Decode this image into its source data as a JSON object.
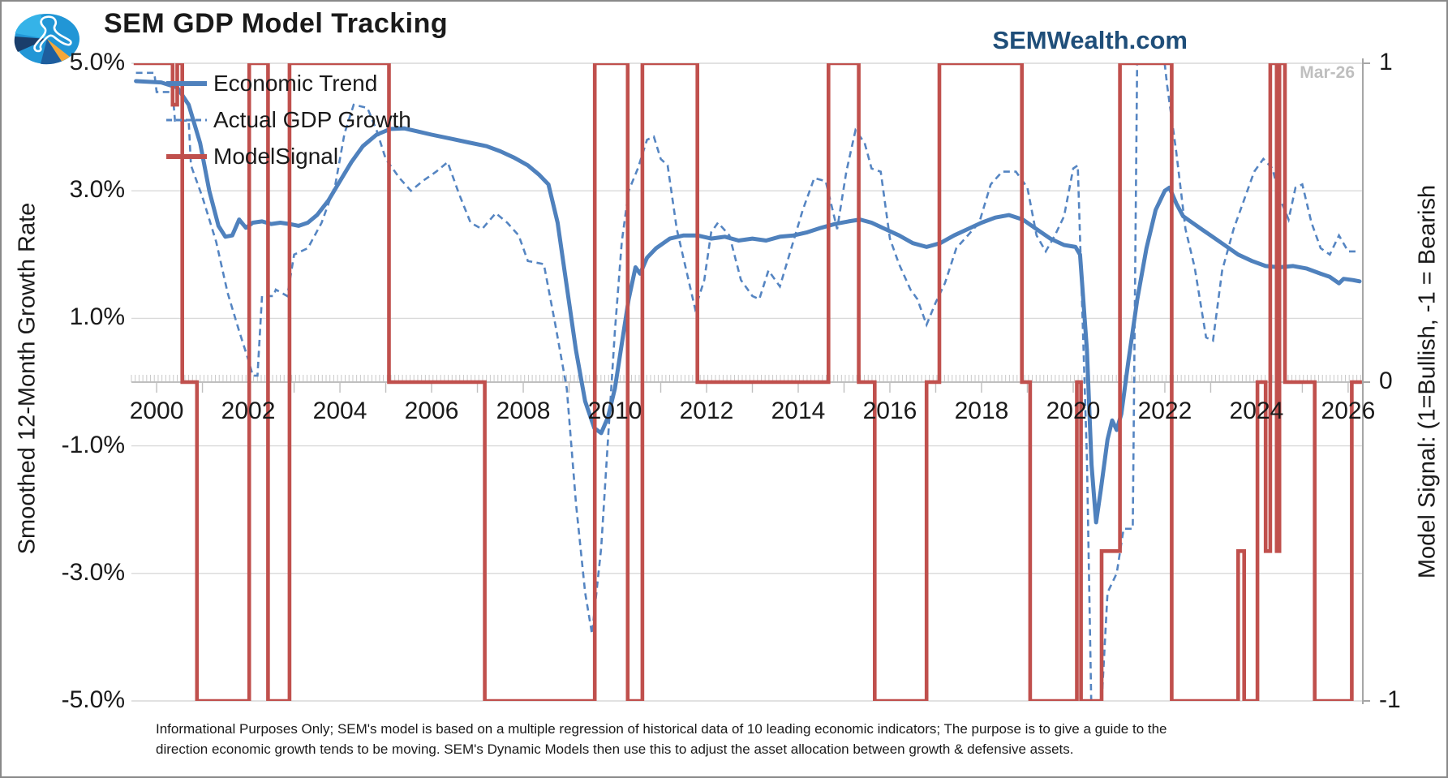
{
  "header": {
    "title": "SEM GDP Model Tracking",
    "brand": "SEMWealth.com",
    "logo": "sem-pie-compass-logo"
  },
  "legend": {
    "items": [
      {
        "label": "Economic Trend",
        "style": "solid",
        "color": "#4F81BD"
      },
      {
        "label": "Actual GDP Growth",
        "style": "dashed",
        "color": "#5585C2"
      },
      {
        "label": "ModelSignal",
        "style": "solid",
        "color": "#C0504D"
      }
    ]
  },
  "footer": {
    "line1": "Informational Purposes Only; SEM's model is based on a multiple regression of historical data of 10 leading economic indicators; The purpose is to give a guide to the",
    "line2": "direction economic growth tends to be moving. SEM's Dynamic Models then use this to adjust the asset allocation between growth & defensive assets."
  },
  "chart_data": {
    "type": "line",
    "title": "SEM GDP Model Tracking",
    "annotation": "Mar-26",
    "left_axis": {
      "label": "Smoothed 12-Month Growth Rate",
      "ticks": [
        {
          "v": 5,
          "text": "5.0%"
        },
        {
          "v": 3,
          "text": "3.0%"
        },
        {
          "v": 1,
          "text": "1.0%"
        },
        {
          "v": -1,
          "text": "-1.0%"
        },
        {
          "v": -3,
          "text": "-3.0%"
        },
        {
          "v": -5,
          "text": "-5.0%"
        }
      ],
      "range": [
        -5,
        5
      ],
      "grid": true
    },
    "right_axis": {
      "label": "Model Signal: (1=Bullish, -1 = Bearish",
      "ticks": [
        {
          "v": 1,
          "text": "1"
        },
        {
          "v": 0,
          "text": "0"
        },
        {
          "v": -1,
          "text": "-1"
        }
      ],
      "range": [
        -1,
        1
      ]
    },
    "x_axis": {
      "year_labels": [
        2000,
        2002,
        2004,
        2006,
        2008,
        2010,
        2012,
        2014,
        2016,
        2018,
        2020,
        2022,
        2024,
        2026
      ],
      "range": [
        1999.45,
        2026.32
      ],
      "minor_tick_interval_years": 0.0833,
      "major_tick_interval_years": 1
    },
    "colors": {
      "trend": "#4F81BD",
      "gdp": "#5585C2",
      "signal": "#C0504D",
      "grid": "#D9D9D9",
      "axis": "#BFBFBF"
    },
    "series": [
      {
        "name": "Economic Trend",
        "type": "line",
        "axis": "left",
        "points": [
          [
            1999.55,
            4.72
          ],
          [
            2000.1,
            4.7
          ],
          [
            2000.45,
            4.62
          ],
          [
            2000.7,
            4.35
          ],
          [
            2000.95,
            3.75
          ],
          [
            2001.15,
            3.0
          ],
          [
            2001.35,
            2.45
          ],
          [
            2001.5,
            2.28
          ],
          [
            2001.65,
            2.3
          ],
          [
            2001.8,
            2.55
          ],
          [
            2001.95,
            2.42
          ],
          [
            2002.1,
            2.5
          ],
          [
            2002.3,
            2.52
          ],
          [
            2002.5,
            2.48
          ],
          [
            2002.7,
            2.5
          ],
          [
            2002.9,
            2.48
          ],
          [
            2003.1,
            2.45
          ],
          [
            2003.3,
            2.5
          ],
          [
            2003.5,
            2.62
          ],
          [
            2003.75,
            2.85
          ],
          [
            2004.0,
            3.15
          ],
          [
            2004.25,
            3.45
          ],
          [
            2004.5,
            3.7
          ],
          [
            2004.8,
            3.88
          ],
          [
            2005.1,
            3.97
          ],
          [
            2005.4,
            3.98
          ],
          [
            2005.7,
            3.93
          ],
          [
            2006.0,
            3.88
          ],
          [
            2006.4,
            3.82
          ],
          [
            2006.8,
            3.76
          ],
          [
            2007.2,
            3.7
          ],
          [
            2007.5,
            3.62
          ],
          [
            2007.8,
            3.52
          ],
          [
            2008.1,
            3.4
          ],
          [
            2008.35,
            3.25
          ],
          [
            2008.55,
            3.1
          ],
          [
            2008.75,
            2.5
          ],
          [
            2008.95,
            1.5
          ],
          [
            2009.15,
            0.5
          ],
          [
            2009.35,
            -0.3
          ],
          [
            2009.55,
            -0.72
          ],
          [
            2009.7,
            -0.8
          ],
          [
            2009.85,
            -0.55
          ],
          [
            2010.0,
            -0.1
          ],
          [
            2010.15,
            0.6
          ],
          [
            2010.3,
            1.3
          ],
          [
            2010.45,
            1.8
          ],
          [
            2010.55,
            1.7
          ],
          [
            2010.7,
            1.95
          ],
          [
            2010.9,
            2.1
          ],
          [
            2011.2,
            2.25
          ],
          [
            2011.5,
            2.3
          ],
          [
            2011.8,
            2.3
          ],
          [
            2012.1,
            2.25
          ],
          [
            2012.4,
            2.28
          ],
          [
            2012.7,
            2.22
          ],
          [
            2013.0,
            2.25
          ],
          [
            2013.3,
            2.22
          ],
          [
            2013.6,
            2.28
          ],
          [
            2013.9,
            2.3
          ],
          [
            2014.2,
            2.35
          ],
          [
            2014.5,
            2.42
          ],
          [
            2014.8,
            2.48
          ],
          [
            2015.1,
            2.52
          ],
          [
            2015.35,
            2.55
          ],
          [
            2015.6,
            2.5
          ],
          [
            2015.9,
            2.4
          ],
          [
            2016.2,
            2.3
          ],
          [
            2016.5,
            2.18
          ],
          [
            2016.8,
            2.12
          ],
          [
            2017.1,
            2.18
          ],
          [
            2017.4,
            2.3
          ],
          [
            2017.7,
            2.4
          ],
          [
            2018.0,
            2.5
          ],
          [
            2018.3,
            2.58
          ],
          [
            2018.6,
            2.62
          ],
          [
            2018.9,
            2.55
          ],
          [
            2019.2,
            2.4
          ],
          [
            2019.5,
            2.25
          ],
          [
            2019.8,
            2.15
          ],
          [
            2020.05,
            2.12
          ],
          [
            2020.15,
            2.0
          ],
          [
            2020.3,
            0.5
          ],
          [
            2020.4,
            -1.3
          ],
          [
            2020.5,
            -2.2
          ],
          [
            2020.6,
            -1.7
          ],
          [
            2020.75,
            -0.9
          ],
          [
            2020.85,
            -0.6
          ],
          [
            2020.95,
            -0.75
          ],
          [
            2021.05,
            -0.5
          ],
          [
            2021.2,
            0.3
          ],
          [
            2021.4,
            1.3
          ],
          [
            2021.6,
            2.1
          ],
          [
            2021.8,
            2.7
          ],
          [
            2022.0,
            3.0
          ],
          [
            2022.1,
            3.05
          ],
          [
            2022.25,
            2.8
          ],
          [
            2022.4,
            2.6
          ],
          [
            2022.6,
            2.5
          ],
          [
            2022.8,
            2.4
          ],
          [
            2023.0,
            2.3
          ],
          [
            2023.3,
            2.15
          ],
          [
            2023.6,
            2.0
          ],
          [
            2023.9,
            1.9
          ],
          [
            2024.2,
            1.82
          ],
          [
            2024.5,
            1.8
          ],
          [
            2024.8,
            1.82
          ],
          [
            2025.1,
            1.78
          ],
          [
            2025.4,
            1.7
          ],
          [
            2025.6,
            1.65
          ],
          [
            2025.8,
            1.55
          ],
          [
            2025.9,
            1.62
          ],
          [
            2026.1,
            1.6
          ],
          [
            2026.25,
            1.58
          ]
        ]
      },
      {
        "name": "Actual GDP Growth",
        "type": "line-dashed",
        "axis": "left",
        "points": [
          [
            1999.55,
            4.85
          ],
          [
            1999.95,
            4.85
          ],
          [
            2000.0,
            4.55
          ],
          [
            2000.35,
            4.55
          ],
          [
            2000.4,
            4.1
          ],
          [
            2000.7,
            4.1
          ],
          [
            2000.75,
            3.4
          ],
          [
            2001.0,
            2.9
          ],
          [
            2001.3,
            2.2
          ],
          [
            2001.55,
            1.4
          ],
          [
            2001.8,
            0.8
          ],
          [
            2002.0,
            0.35
          ],
          [
            2002.1,
            0.1
          ],
          [
            2002.2,
            0.1
          ],
          [
            2002.3,
            1.35
          ],
          [
            2002.55,
            1.35
          ],
          [
            2002.6,
            1.45
          ],
          [
            2002.85,
            1.35
          ],
          [
            2003.0,
            2.0
          ],
          [
            2003.3,
            2.1
          ],
          [
            2003.6,
            2.5
          ],
          [
            2003.9,
            3.1
          ],
          [
            2004.1,
            3.9
          ],
          [
            2004.3,
            4.35
          ],
          [
            2004.6,
            4.3
          ],
          [
            2004.8,
            3.95
          ],
          [
            2005.0,
            3.5
          ],
          [
            2005.3,
            3.2
          ],
          [
            2005.55,
            3.0
          ],
          [
            2005.8,
            3.15
          ],
          [
            2006.1,
            3.3
          ],
          [
            2006.35,
            3.45
          ],
          [
            2006.6,
            2.95
          ],
          [
            2006.85,
            2.5
          ],
          [
            2007.1,
            2.4
          ],
          [
            2007.4,
            2.65
          ],
          [
            2007.65,
            2.5
          ],
          [
            2007.9,
            2.3
          ],
          [
            2008.1,
            1.9
          ],
          [
            2008.45,
            1.85
          ],
          [
            2008.7,
            0.9
          ],
          [
            2008.95,
            -0.1
          ],
          [
            2009.15,
            -1.9
          ],
          [
            2009.35,
            -3.3
          ],
          [
            2009.5,
            -3.95
          ],
          [
            2009.7,
            -2.6
          ],
          [
            2009.85,
            -0.9
          ],
          [
            2010.0,
            0.8
          ],
          [
            2010.15,
            2.2
          ],
          [
            2010.3,
            3.0
          ],
          [
            2010.5,
            3.35
          ],
          [
            2010.7,
            3.8
          ],
          [
            2010.85,
            3.85
          ],
          [
            2011.0,
            3.5
          ],
          [
            2011.15,
            3.4
          ],
          [
            2011.35,
            2.4
          ],
          [
            2011.75,
            1.15
          ],
          [
            2011.95,
            1.6
          ],
          [
            2012.1,
            2.35
          ],
          [
            2012.25,
            2.5
          ],
          [
            2012.5,
            2.3
          ],
          [
            2012.75,
            1.6
          ],
          [
            2013.0,
            1.35
          ],
          [
            2013.15,
            1.3
          ],
          [
            2013.35,
            1.75
          ],
          [
            2013.6,
            1.5
          ],
          [
            2013.85,
            2.1
          ],
          [
            2014.1,
            2.7
          ],
          [
            2014.35,
            3.2
          ],
          [
            2014.6,
            3.15
          ],
          [
            2014.85,
            2.4
          ],
          [
            2015.05,
            3.3
          ],
          [
            2015.25,
            3.95
          ],
          [
            2015.45,
            3.75
          ],
          [
            2015.6,
            3.35
          ],
          [
            2015.8,
            3.3
          ],
          [
            2016.0,
            2.25
          ],
          [
            2016.2,
            1.85
          ],
          [
            2016.45,
            1.45
          ],
          [
            2016.6,
            1.3
          ],
          [
            2016.8,
            0.9
          ],
          [
            2017.0,
            1.25
          ],
          [
            2017.2,
            1.55
          ],
          [
            2017.45,
            2.1
          ],
          [
            2017.7,
            2.3
          ],
          [
            2017.95,
            2.5
          ],
          [
            2018.2,
            3.1
          ],
          [
            2018.45,
            3.3
          ],
          [
            2018.75,
            3.3
          ],
          [
            2019.0,
            3.05
          ],
          [
            2019.2,
            2.3
          ],
          [
            2019.4,
            2.05
          ],
          [
            2019.6,
            2.3
          ],
          [
            2019.8,
            2.6
          ],
          [
            2020.0,
            3.35
          ],
          [
            2020.1,
            3.4
          ],
          [
            2020.3,
            -1.2
          ],
          [
            2020.4,
            -5.3
          ],
          [
            2020.6,
            -5.3
          ],
          [
            2020.75,
            -3.3
          ],
          [
            2020.95,
            -3.0
          ],
          [
            2021.1,
            -2.3
          ],
          [
            2021.3,
            -2.3
          ],
          [
            2021.4,
            5.3
          ],
          [
            2021.95,
            5.3
          ],
          [
            2022.05,
            4.65
          ],
          [
            2022.25,
            3.6
          ],
          [
            2022.45,
            2.4
          ],
          [
            2022.65,
            1.8
          ],
          [
            2022.9,
            0.7
          ],
          [
            2023.05,
            0.65
          ],
          [
            2023.25,
            1.75
          ],
          [
            2023.5,
            2.4
          ],
          [
            2023.75,
            2.9
          ],
          [
            2023.95,
            3.3
          ],
          [
            2024.15,
            3.5
          ],
          [
            2024.35,
            3.35
          ],
          [
            2024.5,
            2.9
          ],
          [
            2024.7,
            2.55
          ],
          [
            2024.85,
            3.05
          ],
          [
            2025.0,
            3.1
          ],
          [
            2025.2,
            2.5
          ],
          [
            2025.4,
            2.1
          ],
          [
            2025.6,
            2.0
          ],
          [
            2025.8,
            2.3
          ],
          [
            2026.0,
            2.05
          ],
          [
            2026.2,
            2.05
          ]
        ]
      },
      {
        "name": "ModelSignal",
        "type": "step",
        "axis": "right",
        "steps": [
          [
            1999.5,
            1
          ],
          [
            2000.35,
            0.87
          ],
          [
            2000.45,
            1
          ],
          [
            2000.56,
            0
          ],
          [
            2000.88,
            -1
          ],
          [
            2002.02,
            1
          ],
          [
            2002.43,
            -1
          ],
          [
            2002.9,
            1
          ],
          [
            2005.07,
            0
          ],
          [
            2007.16,
            -1
          ],
          [
            2009.56,
            1
          ],
          [
            2010.28,
            -1
          ],
          [
            2010.6,
            1
          ],
          [
            2011.8,
            0
          ],
          [
            2014.66,
            1
          ],
          [
            2015.32,
            0
          ],
          [
            2015.67,
            -1
          ],
          [
            2016.8,
            0
          ],
          [
            2017.08,
            1
          ],
          [
            2018.88,
            0
          ],
          [
            2019.06,
            -1
          ],
          [
            2020.08,
            0
          ],
          [
            2020.17,
            -1
          ],
          [
            2020.62,
            -0.53
          ],
          [
            2021.02,
            1
          ],
          [
            2022.15,
            -1
          ],
          [
            2023.6,
            -0.53
          ],
          [
            2023.73,
            -1
          ],
          [
            2024.02,
            0
          ],
          [
            2024.2,
            -0.53
          ],
          [
            2024.3,
            1
          ],
          [
            2024.44,
            -0.53
          ],
          [
            2024.5,
            1
          ],
          [
            2024.62,
            0
          ],
          [
            2025.27,
            -1
          ],
          [
            2026.08,
            0
          ]
        ],
        "end": 2026.3
      }
    ]
  }
}
